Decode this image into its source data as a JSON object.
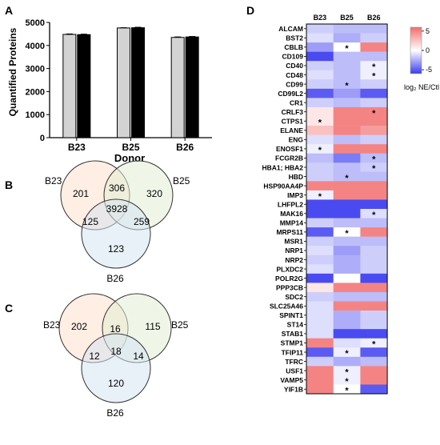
{
  "panels": {
    "A": {
      "label": "A",
      "chart_data": {
        "type": "bar",
        "categories": [
          "B23",
          "B25",
          "B26"
        ],
        "series": [
          {
            "values": [
              4480,
              4760,
              4350
            ],
            "color": "#d3d3d3"
          },
          {
            "values": [
              4470,
              4770,
              4370
            ],
            "color": "#000000"
          }
        ],
        "errors": [
          [
            20,
            10,
            20
          ],
          [
            20,
            20,
            20
          ]
        ],
        "xlabel": "Donor",
        "ylabel": "Quantified Proteins",
        "ylim": [
          0,
          5000
        ],
        "yticks": [
          0,
          1000,
          2000,
          3000,
          4000,
          5000
        ]
      }
    },
    "B": {
      "label": "B",
      "venn": {
        "sets": [
          "B23",
          "B25",
          "B26"
        ],
        "colors": [
          "#fde0cc",
          "#e2efd6",
          "#d6e3f3"
        ],
        "regions": {
          "only_B23": "201",
          "only_B25": "320",
          "only_B26": "123",
          "B23_B25": "306",
          "B23_B26": "125",
          "B25_B26": "259",
          "all": "3928"
        }
      }
    },
    "C": {
      "label": "C",
      "venn": {
        "sets": [
          "B23",
          "B25",
          "B26"
        ],
        "colors": [
          "#fde0cc",
          "#e2efd6",
          "#d6e3f3"
        ],
        "regions": {
          "only_B23": "202",
          "only_B25": "115",
          "only_B26": "120",
          "B23_B25": "16",
          "B23_B26": "12",
          "B25_B26": "14",
          "all": "18"
        }
      }
    },
    "D": {
      "label": "D",
      "chart_data": {
        "type": "heatmap",
        "columns": [
          "B23",
          "B25",
          "B26"
        ],
        "rows": [
          "ALCAM",
          "BST2",
          "CBLB",
          "CD109",
          "CD40",
          "CD48",
          "CD99",
          "CD99L2",
          "CR1",
          "CRLF3",
          "CTPS1",
          "ELANE",
          "ENG",
          "ENOSF1",
          "FCGR2B",
          "HBA1; HBA2",
          "HBD",
          "HSP90AA4P",
          "IMP3",
          "LHFPL2",
          "MAK16",
          "MMP14",
          "MRPS11",
          "MSR1",
          "NRP1",
          "NRP2",
          "PLXDC2",
          "POLR2G",
          "PPP3CB",
          "SDC2",
          "SLC25A46",
          "SPINT1",
          "ST14",
          "STAB1",
          "STMP1",
          "TFIP11",
          "TFRC",
          "USF1",
          "VAMP5",
          "YIF1B"
        ],
        "values": [
          [
            -1.5,
            -2,
            -2
          ],
          [
            -1,
            -2.5,
            -1.5
          ],
          [
            -3,
            0,
            5
          ],
          [
            -5.5,
            -2,
            -2
          ],
          [
            -1.5,
            -2,
            -0.5
          ],
          [
            -1,
            -2,
            -0.5
          ],
          [
            -1.5,
            -2,
            -1.5
          ],
          [
            -5,
            -3,
            -5
          ],
          [
            -1.5,
            -2,
            -1.5
          ],
          [
            1,
            5,
            5
          ],
          [
            1,
            5,
            5
          ],
          [
            2.5,
            5,
            4
          ],
          [
            -1,
            -2,
            -1.5
          ],
          [
            -0.5,
            5,
            5
          ],
          [
            -2,
            -4,
            -2
          ],
          [
            -1.5,
            -2,
            -1.5
          ],
          [
            -1.5,
            -2,
            -2
          ],
          [
            5,
            5,
            5
          ],
          [
            -0.5,
            5,
            5
          ],
          [
            -5.5,
            -5.5,
            -5.5
          ],
          [
            -5.5,
            -5.5,
            -1
          ],
          [
            -1.5,
            -2,
            -2
          ],
          [
            -5,
            0,
            5
          ],
          [
            -1.5,
            -2,
            -2
          ],
          [
            -1,
            -3,
            -1.5
          ],
          [
            -1.5,
            -2.5,
            -1.5
          ],
          [
            -1,
            -2.5,
            -1.5
          ],
          [
            -5.5,
            0,
            -5.5
          ],
          [
            1,
            5,
            5
          ],
          [
            -1.5,
            -2,
            -2
          ],
          [
            -1,
            5,
            5
          ],
          [
            -1,
            -2.5,
            -1.5
          ],
          [
            -1,
            -2.5,
            -1.5
          ],
          [
            -1,
            -5.5,
            -5.5
          ],
          [
            5,
            -1,
            -0.5
          ],
          [
            -5,
            -0.5,
            -5
          ],
          [
            -1.5,
            -2.5,
            -2
          ],
          [
            5,
            -0.5,
            5
          ],
          [
            5,
            -0.5,
            5
          ],
          [
            5,
            0,
            -5
          ]
        ],
        "stars": [
          [
            2,
            1
          ],
          [
            4,
            2
          ],
          [
            5,
            2
          ],
          [
            6,
            1
          ],
          [
            9,
            2
          ],
          [
            10,
            0
          ],
          [
            13,
            0
          ],
          [
            14,
            2
          ],
          [
            15,
            2
          ],
          [
            16,
            1
          ],
          [
            18,
            0
          ],
          [
            20,
            2
          ],
          [
            22,
            1
          ],
          [
            34,
            2
          ],
          [
            35,
            1
          ],
          [
            37,
            1
          ],
          [
            38,
            1
          ],
          [
            39,
            1
          ]
        ],
        "star_symbol": "*",
        "colorbar": {
          "ticks": [
            5,
            0,
            -5
          ],
          "label": "log₂ NE/Ctl",
          "min": -6,
          "max": 6,
          "low_color": "#3a3af0",
          "mid_color": "#ffffff",
          "high_color": "#f26b6b"
        }
      }
    }
  }
}
